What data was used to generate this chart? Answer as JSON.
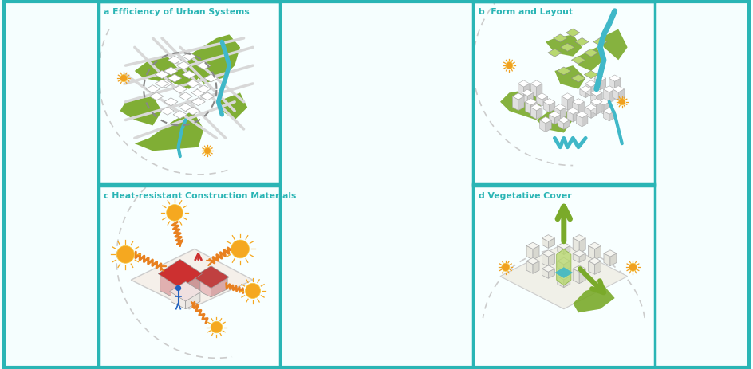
{
  "background_color": "#f5fefe",
  "border_color": "#2ab5b5",
  "panel_titles": [
    "a Efficiency of Urban Systems",
    "b  Form and Layout",
    "c Heat-resistant Construction Materials",
    "d Vegetative Cover"
  ],
  "panel_title_color": "#2ab5b5",
  "panel_bg": "#f8ffff",
  "green_color": "#7aaa2a",
  "lt_green_color": "#b8d870",
  "teal_color": "#40b8c8",
  "orange_color": "#e88020",
  "red_color": "#c04040",
  "road_color": "#d8d8d8",
  "block_color": "#f0f0f0",
  "block_edge": "#aaaaaa"
}
